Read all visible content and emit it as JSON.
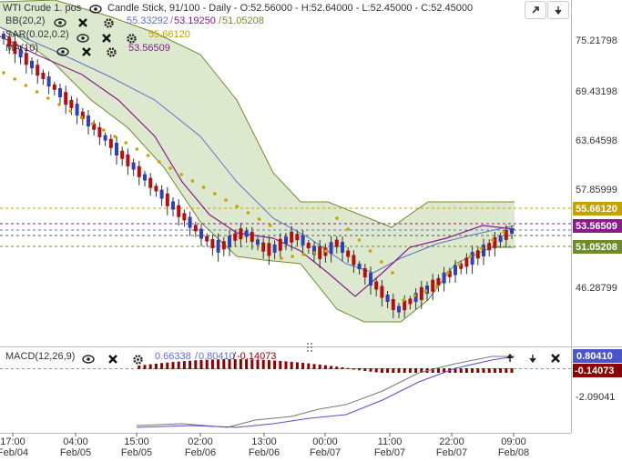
{
  "header": {
    "symbol": "WTI Crude 1. pos",
    "chart_info": "Candle Stick, 91/100 - Daily - O:52.56000 - H:52.64000 - L:52.45000 - C:52.45000"
  },
  "indicators": {
    "bb": {
      "label": "BB(20,2)",
      "values_a": "55.33292",
      "values_b": "53.19250",
      "values_c": "51.05208"
    },
    "sar": {
      "label": "SAR(0.02,0.2)",
      "value": "55.66120"
    },
    "ma": {
      "label": "MA(10)",
      "value": "53.56509"
    }
  },
  "macd": {
    "label": "MACD(12,26,9)",
    "val1": "0.66338",
    "val2": "0.80410",
    "val3": "-0.14073"
  },
  "price_axis": {
    "ticks": [
      "75.21798",
      "69.43198",
      "63.64598",
      "57.85999",
      "46.28799"
    ],
    "tags": [
      {
        "label": "55.66120",
        "color": "#c8a000",
        "kind": "sar"
      },
      {
        "label": "53.56509",
        "color": "#8b1a8b",
        "kind": "ma"
      },
      {
        "label": "51.05208",
        "color": "#6e8b2a",
        "kind": "bb"
      }
    ]
  },
  "macd_axis": {
    "tick": "-2.09041",
    "tags": [
      {
        "label": "0.80410",
        "color": "#4a55c8"
      },
      {
        "label": "-0.14073",
        "color": "#8b0000"
      }
    ]
  },
  "time_axis": [
    {
      "time": "17:00",
      "date": "Feb/04"
    },
    {
      "time": "04:00",
      "date": "Feb/05"
    },
    {
      "time": "15:00",
      "date": "Feb/05"
    },
    {
      "time": "02:00",
      "date": "Feb/06"
    },
    {
      "time": "13:00",
      "date": "Feb/06"
    },
    {
      "time": "00:00",
      "date": "Feb/07"
    },
    {
      "time": "11:00",
      "date": "Feb/07"
    },
    {
      "time": "22:00",
      "date": "Feb/07"
    },
    {
      "time": "09:00",
      "date": "Feb/08"
    }
  ],
  "colors": {
    "up": "#3340b4",
    "down": "#b01010",
    "band_fill": "#dde9cf",
    "band_line": "#6e8b2a",
    "sar": "#c8a000",
    "ma": "#8b1a8b",
    "mid": "#6070c8"
  },
  "icons": [
    "eye-icon",
    "close-icon",
    "gear-icon",
    "arrow-up-icon",
    "arrow-down-icon",
    "drag-handle-icon"
  ]
}
